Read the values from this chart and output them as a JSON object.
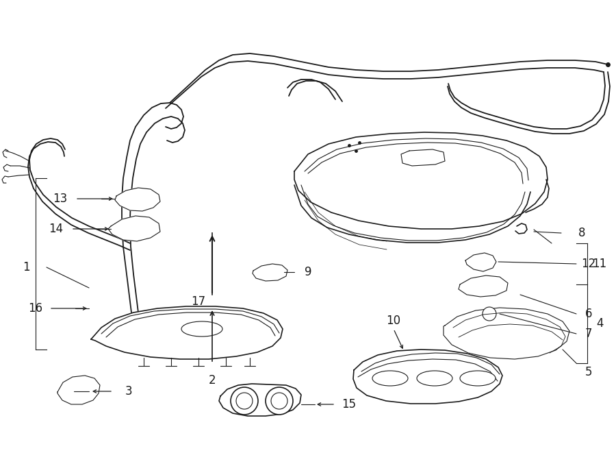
{
  "bg_color": "#ffffff",
  "line_color": "#1a1a1a",
  "fig_width": 9.0,
  "fig_height": 6.61,
  "dpi": 100,
  "lw_wire": 1.3,
  "lw_part": 1.2,
  "lw_thin": 0.8,
  "lw_callout": 0.9,
  "label_fontsize": 12
}
